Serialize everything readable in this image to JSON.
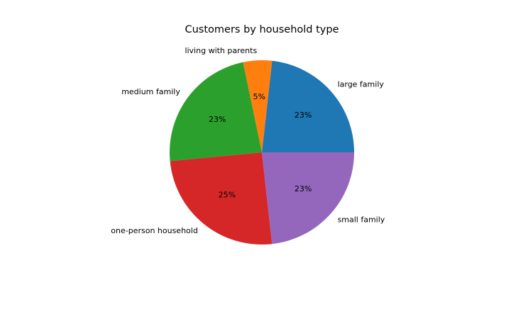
{
  "chart_data": {
    "type": "pie",
    "title": "Customers by household type",
    "categories": [
      "large family",
      "living with parents",
      "medium family",
      "one-person household",
      "small family"
    ],
    "values": [
      23,
      5,
      23,
      25,
      23
    ],
    "percent_labels": [
      "23%",
      "5%",
      "23%",
      "25%",
      "23%"
    ],
    "start_angle_deg": 0,
    "direction": "counterclockwise",
    "colors": [
      "#1f77b4",
      "#ff7f0e",
      "#2ca02c",
      "#d62728",
      "#9467bd"
    ],
    "legend": "none"
  }
}
